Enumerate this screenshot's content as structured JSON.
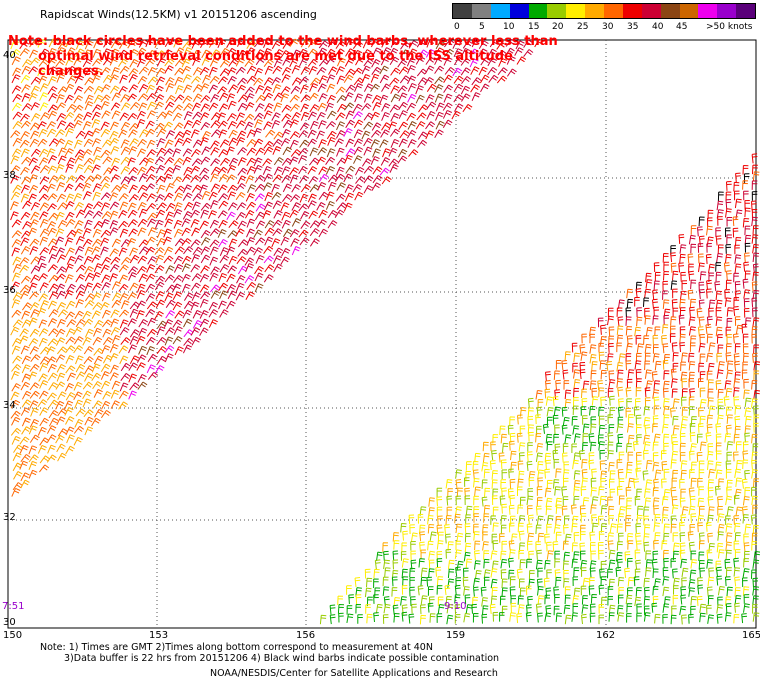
{
  "title": "Rapidscat Winds(12.5KM) v1 20151206 ascending",
  "legend": {
    "colors": [
      "#404040",
      "#808080",
      "#00aaff",
      "#0000dd",
      "#00aa00",
      "#99cc00",
      "#ffee00",
      "#ffaa00",
      "#ff6600",
      "#ee0000",
      "#cc0033",
      "#8b4513",
      "#cc6600",
      "#ee00ee",
      "#9900cc",
      "#5a007a"
    ],
    "labels": [
      "0",
      "5",
      "10",
      "15",
      "20",
      "25",
      "30",
      "35",
      "40",
      "45",
      ">50 knots"
    ]
  },
  "note": {
    "line1": "Note: black circles have been added to the wind barbs, wherever less than",
    "line2": "optimal wind retrieval conditions are met due to the ISS altitude changes."
  },
  "axes": {
    "lon_ticks": [
      "150",
      "153",
      "156",
      "159",
      "162",
      "165"
    ],
    "lat_ticks": [
      "40",
      "38",
      "36",
      "34",
      "32",
      "30"
    ]
  },
  "time_labels": [
    "7:51",
    "9:10"
  ],
  "footnote": {
    "line1": "Note: 1) Times are GMT 2)Times along bottom correspond to measurement at 40N",
    "line2": "3)Data buffer is 22 hrs from 20151206 4) Black wind barbs indicate possible contamination"
  },
  "credit": "NOAA/NESDIS/Center for Satellite Applications and Research"
}
